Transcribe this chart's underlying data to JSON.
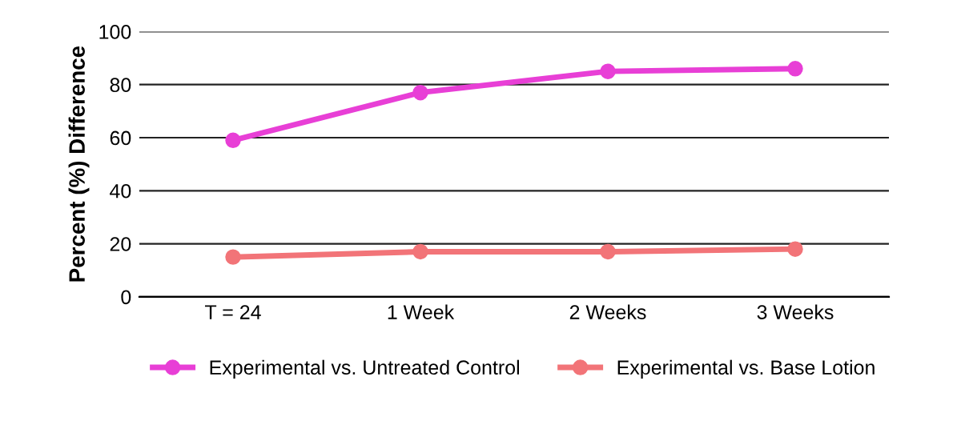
{
  "chart_data": {
    "type": "line",
    "ylabel": "Percent (%) Difference",
    "categories": [
      "T = 24",
      "1 Week",
      "2 Weeks",
      "3 Weeks"
    ],
    "series": [
      {
        "name": "Experimental vs. Untreated Control",
        "color": "#e83fd6",
        "values": [
          59,
          77,
          85,
          86
        ]
      },
      {
        "name": "Experimental vs. Base Lotion",
        "color": "#f27478",
        "values": [
          15,
          17,
          17,
          18
        ]
      }
    ],
    "ylim": [
      0,
      100
    ],
    "yticks": [
      0,
      20,
      40,
      60,
      80,
      100
    ],
    "grid": "y",
    "legend": "bottom",
    "marker": "circle",
    "line_style": "solid"
  }
}
